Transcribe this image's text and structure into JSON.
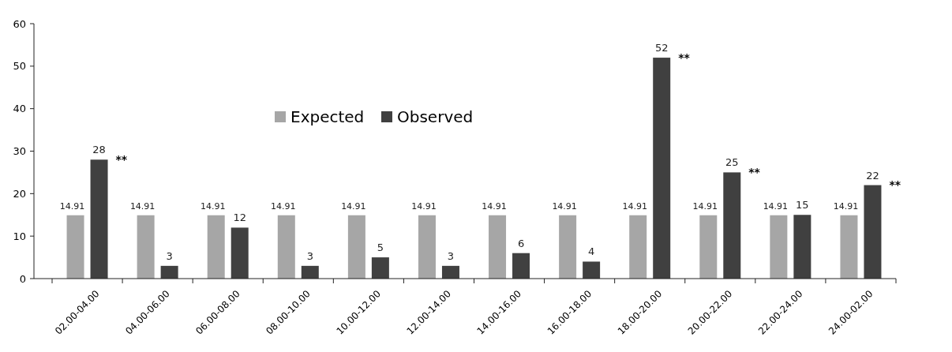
{
  "chart_data": {
    "type": "bar",
    "categories": [
      "02.00-04.00",
      "04.00-06.00",
      "06.00-08.00",
      "08.00-10.00",
      "10.00-12.00",
      "12.00-14.00",
      "14.00-16.00",
      "16.00-18.00",
      "18.00-20.00",
      "20.00-22.00",
      "22.00-24.00",
      "24.00-02.00"
    ],
    "series": [
      {
        "name": "Expected",
        "color": "#a6a6a6",
        "values": [
          14.91,
          14.91,
          14.91,
          14.91,
          14.91,
          14.91,
          14.91,
          14.91,
          14.91,
          14.91,
          14.91,
          14.91
        ]
      },
      {
        "name": "Observed",
        "color": "#404040",
        "values": [
          28,
          3,
          12,
          3,
          5,
          3,
          6,
          4,
          52,
          25,
          15,
          22
        ]
      }
    ],
    "ylim": [
      0,
      60
    ],
    "yticks": [
      0,
      10,
      20,
      30,
      40,
      50,
      60
    ],
    "grid": false,
    "legend": "top left",
    "data_labels": true,
    "annotations": [
      {
        "text": "**",
        "x": "02.00-04.00",
        "y": 28
      },
      {
        "text": "**",
        "x": "18.00-20.00",
        "y": 52
      },
      {
        "text": "**",
        "x": "20.00-22.00",
        "y": 25
      },
      {
        "text": "**",
        "x": "24.00-02.00",
        "y": 22
      }
    ]
  }
}
